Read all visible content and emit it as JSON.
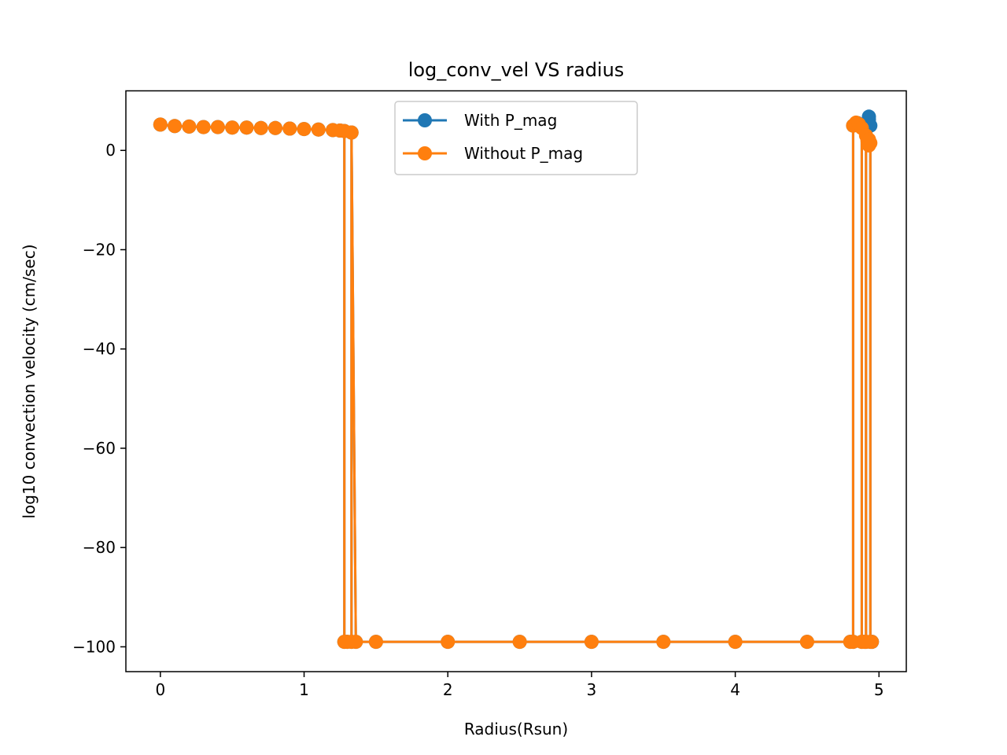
{
  "chart_data": {
    "type": "line",
    "title": "log_conv_vel VS radius",
    "xlabel": "Radius(Rsun)",
    "ylabel": "log10 convection velocity (cm/sec)",
    "xlim": [
      -0.24,
      5.19
    ],
    "ylim": [
      -105,
      12
    ],
    "xticks": [
      0,
      1,
      2,
      3,
      4,
      5
    ],
    "xtick_labels": [
      "0",
      "1",
      "2",
      "3",
      "4",
      "5"
    ],
    "yticks": [
      0,
      -20,
      -40,
      -60,
      -80,
      -100
    ],
    "ytick_labels": [
      "0",
      "−20",
      "−40",
      "−60",
      "−80",
      "−100"
    ],
    "grid": false,
    "legend_position": "upper center",
    "series": [
      {
        "name": "With P_mag",
        "color": "#1f77b4",
        "x": [
          0.0,
          0.1,
          0.2,
          0.3,
          0.4,
          0.5,
          0.6,
          0.7,
          0.8,
          0.9,
          1.0,
          1.1,
          1.2,
          1.25,
          1.28,
          1.28,
          1.3,
          1.33,
          1.33,
          1.36,
          1.5,
          2.0,
          2.5,
          3.0,
          3.5,
          4.0,
          4.5,
          4.8,
          4.82,
          4.82,
          4.85,
          4.87,
          4.88,
          4.88,
          4.9,
          4.91,
          4.91,
          4.92,
          4.93,
          4.93,
          4.94,
          4.94,
          4.95,
          4.95
        ],
        "y": [
          5.2,
          4.9,
          4.8,
          4.7,
          4.7,
          4.6,
          4.6,
          4.5,
          4.5,
          4.4,
          4.3,
          4.2,
          4.1,
          4.0,
          3.9,
          -99.0,
          -99.0,
          -99.0,
          3.6,
          -99.0,
          -99.0,
          -99.0,
          -99.0,
          -99.0,
          -99.0,
          -99.0,
          -99.0,
          -99.0,
          -99.0,
          5.0,
          5.5,
          5.2,
          4.8,
          -99.0,
          -99.0,
          -99.0,
          4.5,
          5.5,
          6.2,
          6.8,
          5.0,
          -99.0,
          -99.0,
          -99.0
        ]
      },
      {
        "name": "Without P_mag",
        "color": "#ff7f0e",
        "x": [
          0.0,
          0.1,
          0.2,
          0.3,
          0.4,
          0.5,
          0.6,
          0.7,
          0.8,
          0.9,
          1.0,
          1.1,
          1.2,
          1.25,
          1.28,
          1.28,
          1.3,
          1.33,
          1.33,
          1.36,
          1.5,
          2.0,
          2.5,
          3.0,
          3.5,
          4.0,
          4.5,
          4.8,
          4.82,
          4.82,
          4.84,
          4.86,
          4.88,
          4.88,
          4.9,
          4.91,
          4.91,
          4.92,
          4.93,
          4.93,
          4.94,
          4.94,
          4.95
        ],
        "y": [
          5.2,
          4.9,
          4.8,
          4.7,
          4.7,
          4.6,
          4.6,
          4.5,
          4.5,
          4.4,
          4.3,
          4.2,
          4.1,
          4.0,
          3.9,
          -99.0,
          -99.0,
          -99.0,
          3.6,
          -99.0,
          -99.0,
          -99.0,
          -99.0,
          -99.0,
          -99.0,
          -99.0,
          -99.0,
          -99.0,
          -99.0,
          5.0,
          5.6,
          5.3,
          4.5,
          -99.0,
          -99.0,
          -99.0,
          3.0,
          2.0,
          1.0,
          2.2,
          1.5,
          -99.0,
          -99.0
        ]
      }
    ]
  }
}
